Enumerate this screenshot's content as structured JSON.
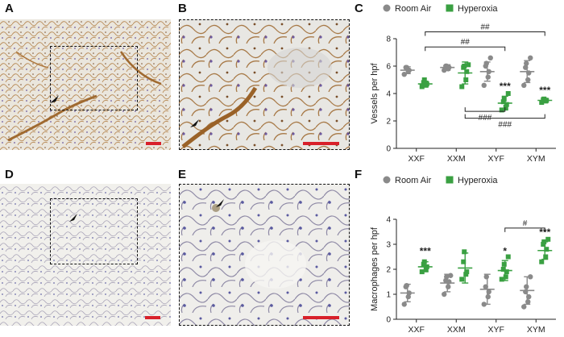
{
  "panels": {
    "A": "A",
    "B": "B",
    "C": "C",
    "D": "D",
    "E": "E",
    "F": "F"
  },
  "colors": {
    "room_air": "#8a8a8a",
    "hyperoxia": "#3aa042",
    "scale_bar": "#d8202a",
    "vessel_stain": "#a06a30",
    "macrophage_stain": "#6a6aa8"
  },
  "chart_data": [
    {
      "panel": "C",
      "type": "scatter",
      "ylabel": "Vessels per hpf",
      "categories": [
        "XXF",
        "XXM",
        "XYF",
        "XYM"
      ],
      "ylim": [
        0,
        8
      ],
      "yticks": [
        0,
        2,
        4,
        6,
        8
      ],
      "legend": {
        "placement": "top",
        "items": [
          "Room Air",
          "Hyperoxia"
        ]
      },
      "series": [
        {
          "name": "Room Air",
          "mean": [
            5.7,
            5.9,
            5.6,
            5.6
          ],
          "sd": [
            0.25,
            0.2,
            0.7,
            0.8
          ],
          "points": [
            [
              5.4,
              5.6,
              5.7,
              5.9,
              5.9
            ],
            [
              5.7,
              5.8,
              5.9,
              6.0,
              6.0
            ],
            [
              4.6,
              5.2,
              5.6,
              6.0,
              6.2,
              6.6
            ],
            [
              4.6,
              5.0,
              5.5,
              5.9,
              6.2,
              6.6
            ]
          ]
        },
        {
          "name": "Hyperoxia",
          "mean": [
            4.7,
            5.5,
            3.3,
            3.5
          ],
          "sd": [
            0.2,
            0.8,
            0.5,
            0.15
          ],
          "points": [
            [
              4.5,
              4.6,
              4.7,
              4.8,
              5.0
            ],
            [
              4.5,
              5.0,
              5.6,
              5.9,
              6.0,
              6.1
            ],
            [
              2.8,
              3.0,
              3.2,
              3.4,
              3.6,
              4.0
            ],
            [
              3.35,
              3.45,
              3.5,
              3.55,
              3.6
            ]
          ]
        }
      ],
      "annotations": [
        {
          "label": "***",
          "category": "XYF",
          "series": "Hyperoxia",
          "y": 4.3
        },
        {
          "label": "***",
          "category": "XYM",
          "series": "Hyperoxia",
          "y": 4.0
        },
        {
          "label": "##",
          "from": "XXF",
          "to": "XYM",
          "y": 8.5,
          "position": "above"
        },
        {
          "label": "##",
          "from": "XXF",
          "to": "XYF",
          "y": 7.4,
          "position": "above"
        },
        {
          "label": "###",
          "from": "XXM",
          "to": "XYF",
          "y": 2.7,
          "position": "below"
        },
        {
          "label": "###",
          "from": "XXM",
          "to": "XYM",
          "y": 2.2,
          "position": "below"
        }
      ]
    },
    {
      "panel": "F",
      "type": "scatter",
      "ylabel": "Macrophages per hpf",
      "categories": [
        "XXF",
        "XXM",
        "XYF",
        "XYM"
      ],
      "ylim": [
        0,
        4
      ],
      "yticks": [
        0,
        1,
        2,
        3,
        4
      ],
      "legend": {
        "placement": "top",
        "items": [
          "Room Air",
          "Hyperoxia"
        ]
      },
      "series": [
        {
          "name": "Room Air",
          "mean": [
            1.05,
            1.45,
            1.2,
            1.15
          ],
          "sd": [
            0.35,
            0.35,
            0.6,
            0.55
          ],
          "points": [
            [
              0.6,
              0.9,
              1.05,
              1.3,
              1.35
            ],
            [
              1.0,
              1.3,
              1.5,
              1.55,
              1.7,
              1.75
            ],
            [
              0.6,
              0.9,
              1.1,
              1.3,
              1.7
            ],
            [
              0.5,
              0.7,
              0.9,
              1.1,
              1.3,
              1.7
            ]
          ]
        },
        {
          "name": "Hyperoxia",
          "mean": [
            2.1,
            2.05,
            1.95,
            2.75
          ],
          "sd": [
            0.2,
            0.6,
            0.4,
            0.35
          ],
          "points": [
            [
              1.9,
              2.0,
              2.1,
              2.2,
              2.3
            ],
            [
              1.6,
              1.8,
              1.9,
              2.3,
              2.7
            ],
            [
              1.6,
              1.7,
              1.9,
              2.0,
              2.2,
              2.5
            ],
            [
              2.3,
              2.5,
              2.8,
              3.0,
              3.1,
              3.2
            ]
          ]
        }
      ],
      "annotations": [
        {
          "label": "***",
          "category": "XXF",
          "series": "Hyperoxia",
          "y": 2.6
        },
        {
          "label": "*",
          "category": "XYF",
          "series": "Hyperoxia",
          "y": 2.6
        },
        {
          "label": "***",
          "category": "XYM",
          "series": "Hyperoxia",
          "y": 3.35
        },
        {
          "label": "#",
          "from": "XYF",
          "to": "XYM",
          "y": 3.65,
          "position": "above"
        }
      ]
    }
  ]
}
